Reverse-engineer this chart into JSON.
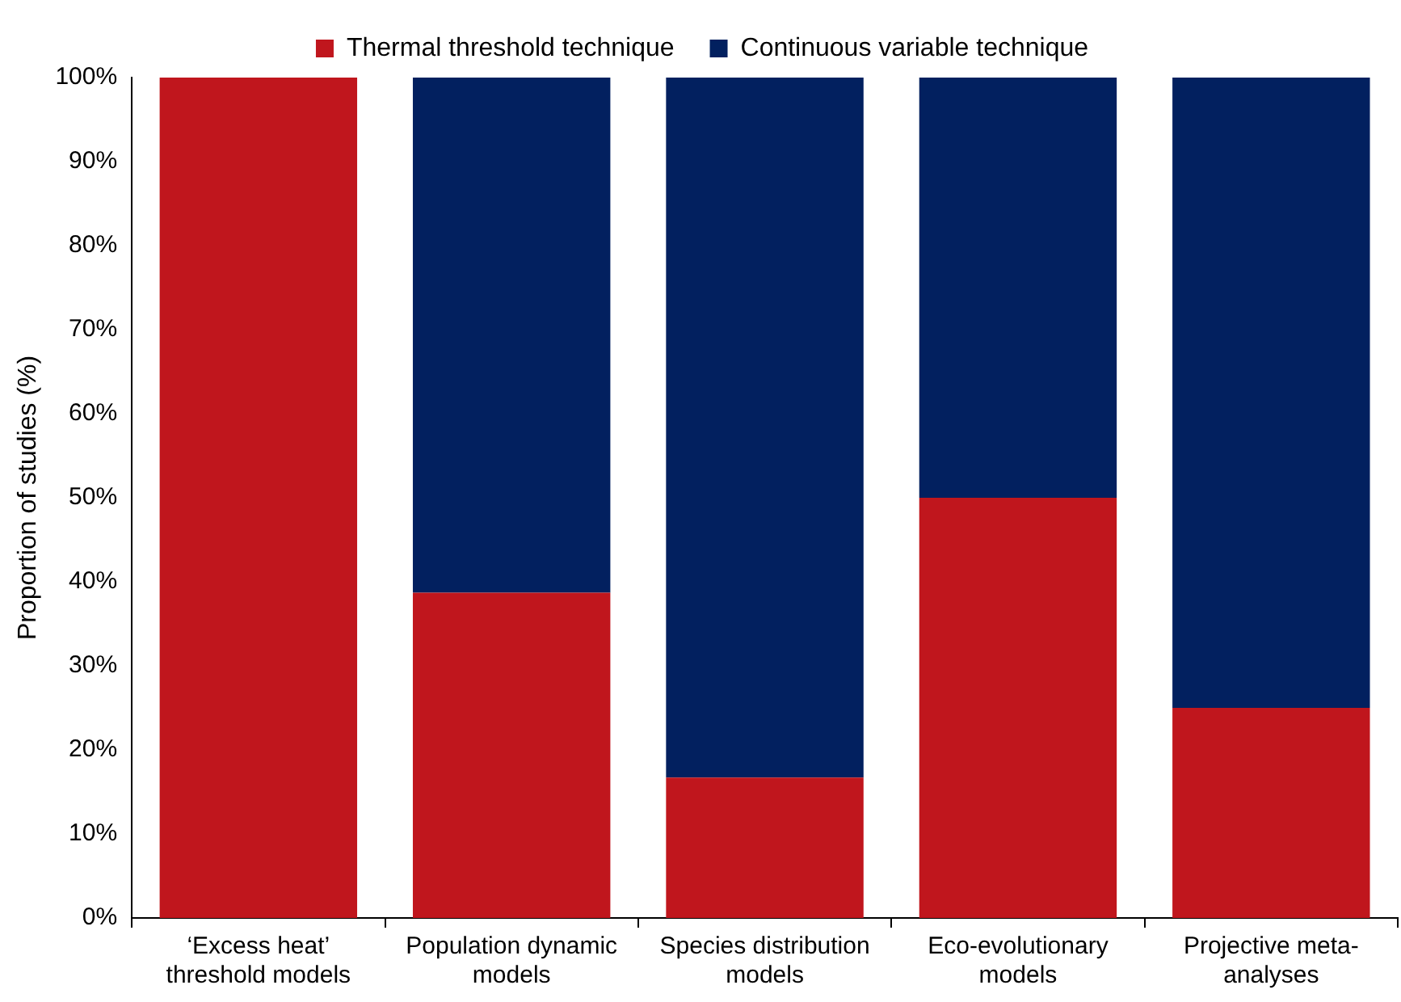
{
  "chart_data": {
    "type": "bar",
    "stacked": true,
    "ylabel": "Proportion of studies (%)",
    "categories": [
      "‘Excess heat’ threshold models",
      "Population dynamic models",
      "Species distribution models",
      "Eco-evolutionary models",
      "Projective meta-analyses"
    ],
    "series": [
      {
        "name": "Thermal threshold technique",
        "color": "#c0161d",
        "values": [
          100,
          38.7,
          16.7,
          50,
          25
        ]
      },
      {
        "name": "Continuous variable technique",
        "color": "#02205f",
        "values": [
          0,
          61.3,
          83.3,
          50,
          75
        ]
      }
    ],
    "ylim": [
      0,
      100
    ],
    "yticks": [
      {
        "value": 0,
        "label": "0%"
      },
      {
        "value": 10,
        "label": "10%"
      },
      {
        "value": 20,
        "label": "20%"
      },
      {
        "value": 30,
        "label": "30%"
      },
      {
        "value": 40,
        "label": "40%"
      },
      {
        "value": 50,
        "label": "50%"
      },
      {
        "value": 60,
        "label": "60%"
      },
      {
        "value": 70,
        "label": "70%"
      },
      {
        "value": 80,
        "label": "80%"
      },
      {
        "value": 90,
        "label": "90%"
      },
      {
        "value": 100,
        "label": "100%"
      }
    ],
    "grid": false,
    "legend": "top"
  }
}
